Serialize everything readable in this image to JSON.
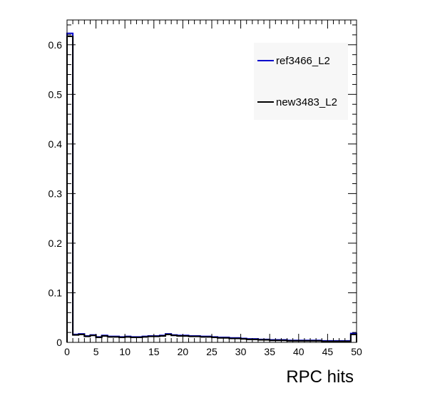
{
  "chart_data": {
    "type": "histogram",
    "xlabel": "RPC hits",
    "ylabel": "",
    "title": "",
    "xlim": [
      0,
      50
    ],
    "ylim": [
      0,
      0.65
    ],
    "x_ticks": [
      "0",
      "5",
      "10",
      "15",
      "20",
      "25",
      "30",
      "35",
      "40",
      "45",
      "50"
    ],
    "y_ticks": [
      "0",
      "0.1",
      "0.2",
      "0.3",
      "0.4",
      "0.5",
      "0.6"
    ],
    "legend_position": "top-right",
    "grid": false,
    "bin_width": 1,
    "series": [
      {
        "name": "ref3466_L2",
        "color": "#0000cc",
        "values": [
          0.623,
          0.016,
          0.017,
          0.013,
          0.015,
          0.011,
          0.014,
          0.012,
          0.012,
          0.011,
          0.012,
          0.011,
          0.011,
          0.012,
          0.013,
          0.013,
          0.014,
          0.017,
          0.015,
          0.014,
          0.014,
          0.013,
          0.013,
          0.012,
          0.012,
          0.011,
          0.01,
          0.01,
          0.009,
          0.009,
          0.008,
          0.007,
          0.007,
          0.006,
          0.006,
          0.005,
          0.005,
          0.005,
          0.004,
          0.004,
          0.004,
          0.004,
          0.004,
          0.004,
          0.003,
          0.003,
          0.003,
          0.003,
          0.003,
          0.018
        ]
      },
      {
        "name": "new3483_L2",
        "color": "#000000",
        "values": [
          0.617,
          0.015,
          0.016,
          0.012,
          0.014,
          0.01,
          0.013,
          0.011,
          0.011,
          0.01,
          0.011,
          0.01,
          0.01,
          0.011,
          0.012,
          0.012,
          0.013,
          0.016,
          0.014,
          0.013,
          0.013,
          0.012,
          0.012,
          0.011,
          0.011,
          0.01,
          0.009,
          0.009,
          0.008,
          0.008,
          0.007,
          0.006,
          0.006,
          0.005,
          0.005,
          0.004,
          0.004,
          0.004,
          0.003,
          0.003,
          0.003,
          0.003,
          0.003,
          0.003,
          0.002,
          0.002,
          0.002,
          0.002,
          0.002,
          0.016
        ]
      }
    ]
  }
}
